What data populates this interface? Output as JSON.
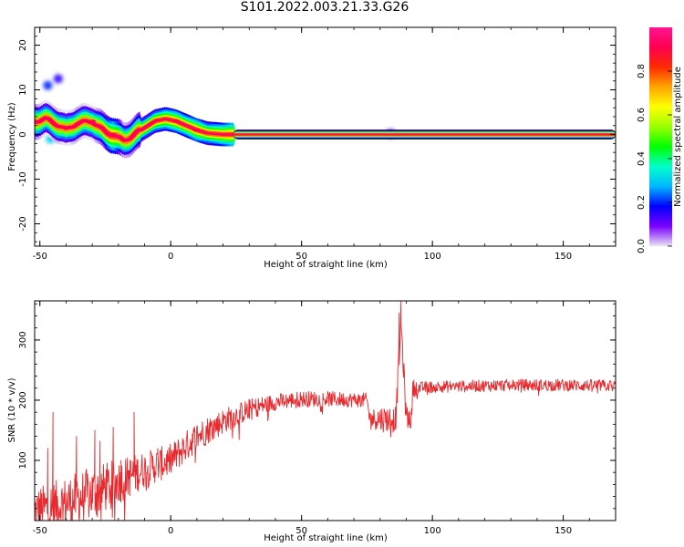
{
  "title": "S101.2022.003.21.33.G26",
  "chart_data": [
    {
      "type": "heatmap",
      "xlabel": "Height of straight line (km)",
      "ylabel": "Frequency (Hz)",
      "xlim": [
        -52,
        170
      ],
      "ylim": [
        -25,
        24
      ],
      "xticks": [
        "-50",
        "0",
        "50",
        "100",
        "150"
      ],
      "yticks": [
        "20",
        "10",
        "0",
        "-10",
        "-20"
      ],
      "colorbar": {
        "label": "Normalized spectral amplitude",
        "range": [
          0,
          1
        ],
        "ticks": [
          "0.0",
          "0.2",
          "0.4",
          "0.6",
          "0.8"
        ],
        "colormap": [
          "#e8e4f4",
          "#7b00ff",
          "#0000ff",
          "#00b7ff",
          "#00ffc8",
          "#00ff00",
          "#9bff00",
          "#ffff00",
          "#ffa500",
          "#ff2a00",
          "#ff0050",
          "#ff1493"
        ]
      },
      "ridge": [
        {
          "x": -52,
          "y": 3.0,
          "a": 0.45
        },
        {
          "x": -48,
          "y": 3.5,
          "a": 0.35
        },
        {
          "x": -44,
          "y": 2.5,
          "a": 0.4
        },
        {
          "x": -40,
          "y": 1.0,
          "a": 0.35
        },
        {
          "x": -36,
          "y": 2.5,
          "a": 0.4
        },
        {
          "x": -30,
          "y": 3.0,
          "a": 0.35
        },
        {
          "x": -25,
          "y": 0.5,
          "a": 0.5
        },
        {
          "x": -22,
          "y": 0.0,
          "a": 0.7
        },
        {
          "x": -18,
          "y": -1.5,
          "a": 0.4
        },
        {
          "x": -14,
          "y": 0.0,
          "a": 0.45
        },
        {
          "x": -10,
          "y": 1.5,
          "a": 0.55
        },
        {
          "x": -6,
          "y": 3.0,
          "a": 0.6
        },
        {
          "x": -2,
          "y": 3.5,
          "a": 0.65
        },
        {
          "x": 2,
          "y": 3.0,
          "a": 0.7
        },
        {
          "x": 6,
          "y": 2.0,
          "a": 0.65
        },
        {
          "x": 10,
          "y": 1.0,
          "a": 0.75
        },
        {
          "x": 14,
          "y": 0.3,
          "a": 0.6
        },
        {
          "x": 20,
          "y": 0.0,
          "a": 0.7
        },
        {
          "x": 24,
          "y": 0.0,
          "a": 0.85
        }
      ],
      "blobs": [
        {
          "x": -47,
          "y": 11.0,
          "a": 0.2
        },
        {
          "x": -43,
          "y": 12.5,
          "a": 0.15
        },
        {
          "x": -46,
          "y": -1.0,
          "a": 0.3
        },
        {
          "x": -38,
          "y": -0.5,
          "a": 0.25
        },
        {
          "x": -32,
          "y": 1.0,
          "a": 0.3
        },
        {
          "x": 84,
          "y": 0.2,
          "a": 0.15
        }
      ],
      "band": {
        "x_start": 24,
        "x_end": 170,
        "y": 0,
        "a": 0.95
      }
    },
    {
      "type": "line",
      "xlabel": "Height of straight line (km)",
      "ylabel": "SNR (10 * v/v)",
      "xlim": [
        -52,
        170
      ],
      "ylim": [
        0,
        365
      ],
      "xticks": [
        "-50",
        "0",
        "50",
        "100",
        "150"
      ],
      "yticks": [
        "300",
        "200",
        "100"
      ],
      "color": "#e8292d",
      "trend": [
        {
          "x": -52,
          "y": 15
        },
        {
          "x": -40,
          "y": 30
        },
        {
          "x": -30,
          "y": 45
        },
        {
          "x": -20,
          "y": 65
        },
        {
          "x": -10,
          "y": 85
        },
        {
          "x": 0,
          "y": 100
        },
        {
          "x": 10,
          "y": 140
        },
        {
          "x": 20,
          "y": 165
        },
        {
          "x": 30,
          "y": 185
        },
        {
          "x": 40,
          "y": 197
        },
        {
          "x": 50,
          "y": 202
        },
        {
          "x": 60,
          "y": 202
        },
        {
          "x": 75,
          "y": 200
        },
        {
          "x": 76,
          "y": 170
        },
        {
          "x": 86,
          "y": 168
        },
        {
          "x": 87,
          "y": 250
        },
        {
          "x": 88,
          "y": 330
        },
        {
          "x": 89,
          "y": 250
        },
        {
          "x": 90,
          "y": 170
        },
        {
          "x": 92,
          "y": 170
        },
        {
          "x": 92.5,
          "y": 220
        },
        {
          "x": 100,
          "y": 222
        },
        {
          "x": 130,
          "y": 225
        },
        {
          "x": 150,
          "y": 225
        },
        {
          "x": 170,
          "y": 224
        }
      ],
      "noise": [
        {
          "x": -52,
          "amp": 40
        },
        {
          "x": -30,
          "amp": 45
        },
        {
          "x": -10,
          "amp": 30
        },
        {
          "x": 10,
          "amp": 25
        },
        {
          "x": 40,
          "amp": 14
        },
        {
          "x": 75,
          "amp": 12
        },
        {
          "x": 80,
          "amp": 22
        },
        {
          "x": 90,
          "amp": 22
        },
        {
          "x": 95,
          "amp": 10
        },
        {
          "x": 170,
          "amp": 10
        }
      ],
      "spikes": [
        {
          "x": -47,
          "y": 120
        },
        {
          "x": -45,
          "y": 180
        },
        {
          "x": -36,
          "y": 140
        },
        {
          "x": -29,
          "y": 150
        },
        {
          "x": -27,
          "y": 132
        },
        {
          "x": -22,
          "y": 155
        },
        {
          "x": -19,
          "y": 100
        },
        {
          "x": -14,
          "y": 180
        },
        {
          "x": -5,
          "y": 120
        },
        {
          "x": 88,
          "y": 365
        },
        {
          "x": 87.3,
          "y": 345
        }
      ]
    }
  ]
}
